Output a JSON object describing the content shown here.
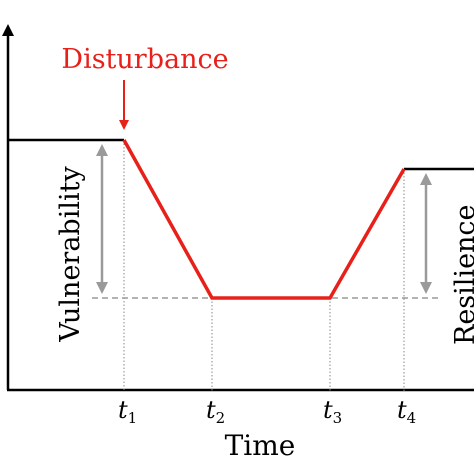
{
  "labels": {
    "disturbance": "Disturbance",
    "vulnerability": "Vulnerability",
    "resilience": "Resilience",
    "time": "Time",
    "ticks": [
      {
        "letter": "t",
        "sub": "1"
      },
      {
        "letter": "t",
        "sub": "2"
      },
      {
        "letter": "t",
        "sub": "3"
      },
      {
        "letter": "t",
        "sub": "4"
      }
    ]
  },
  "colors": {
    "axis": "#000000",
    "performance_line": "#e8201a",
    "disturbance_text": "#e8201a",
    "measure_arrow": "#9a9a9a",
    "reference_line": "#9a9a9a",
    "guide_line": "#8a8a8a"
  }
}
